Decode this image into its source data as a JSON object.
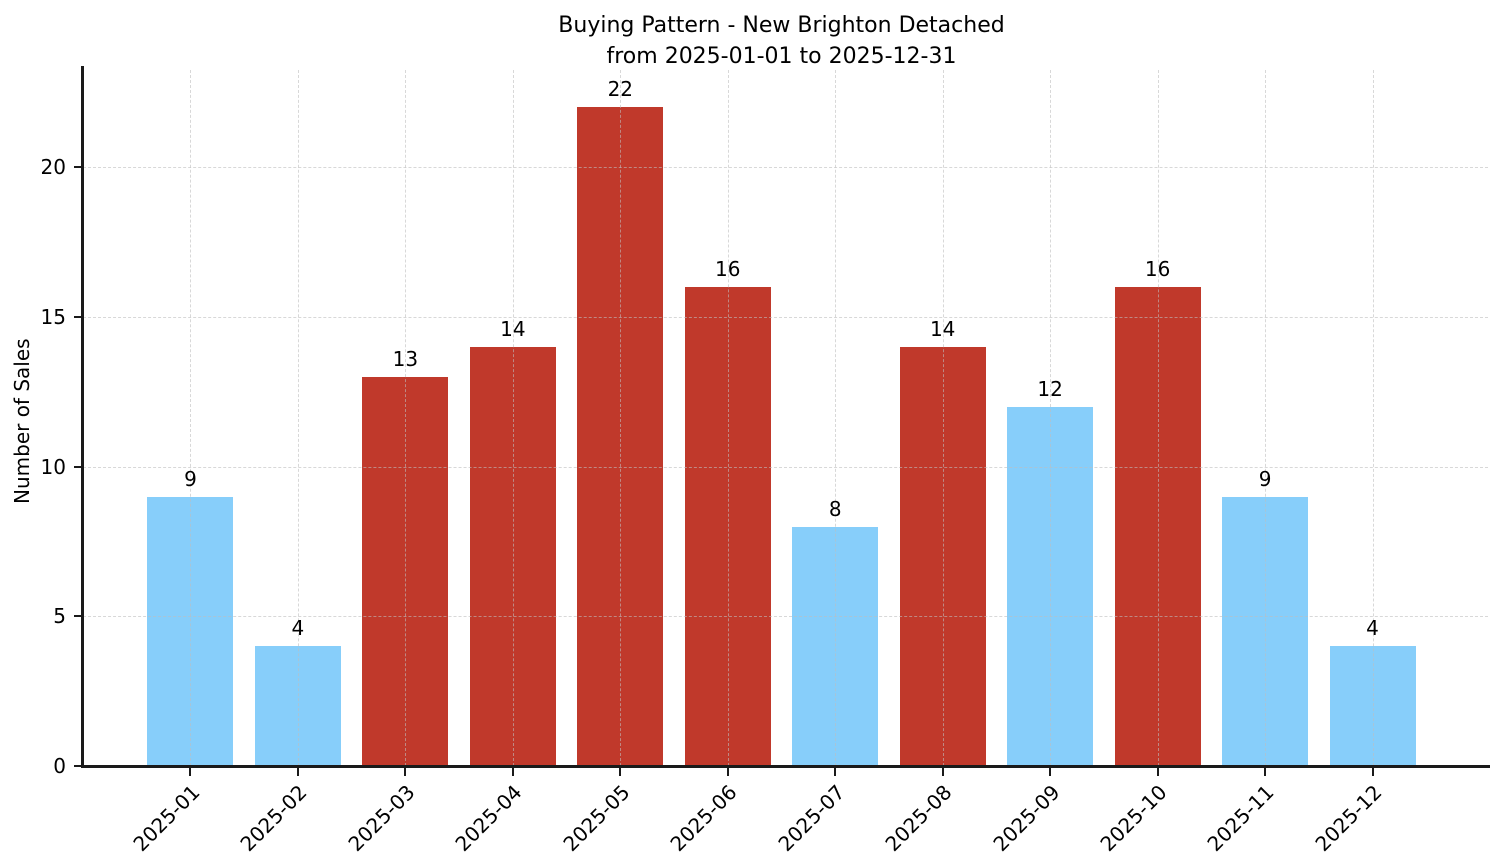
{
  "figure": {
    "title": "Buying Pattern - New Brighton Detached",
    "subtitle": "from 2025-01-01 to 2025-12-31",
    "ylabel": "Number of Sales"
  },
  "style": {
    "bar_color_low": "#87cefa",
    "bar_color_high": "#c0392b",
    "axis_color": "#1a1a1a",
    "grid_color_rgba": "rgba(190,190,190,0.6)",
    "background": "#ffffff",
    "text_color": "#000000"
  },
  "chart_data": {
    "type": "bar",
    "title": "Buying Pattern - New Brighton Detached",
    "subtitle": "from 2025-01-01 to 2025-12-31",
    "xlabel": "",
    "ylabel": "Number of Sales",
    "categories": [
      "2025-01",
      "2025-02",
      "2025-03",
      "2025-04",
      "2025-05",
      "2025-06",
      "2025-07",
      "2025-08",
      "2025-09",
      "2025-10",
      "2025-11",
      "2025-12"
    ],
    "values": [
      9,
      4,
      13,
      14,
      22,
      16,
      8,
      14,
      12,
      16,
      9,
      4
    ],
    "bar_colors": [
      "#87cefa",
      "#87cefa",
      "#c0392b",
      "#c0392b",
      "#c0392b",
      "#c0392b",
      "#87cefa",
      "#c0392b",
      "#87cefa",
      "#c0392b",
      "#87cefa",
      "#87cefa"
    ],
    "value_labels": [
      9,
      4,
      13,
      14,
      22,
      16,
      8,
      14,
      12,
      16,
      9,
      4
    ],
    "yticks": [
      0,
      5,
      10,
      15,
      20
    ],
    "ylim": [
      0,
      23.25
    ],
    "grid": true,
    "grid_style": "dashed",
    "legend": "none",
    "x_tick_rotation_deg": 45
  }
}
